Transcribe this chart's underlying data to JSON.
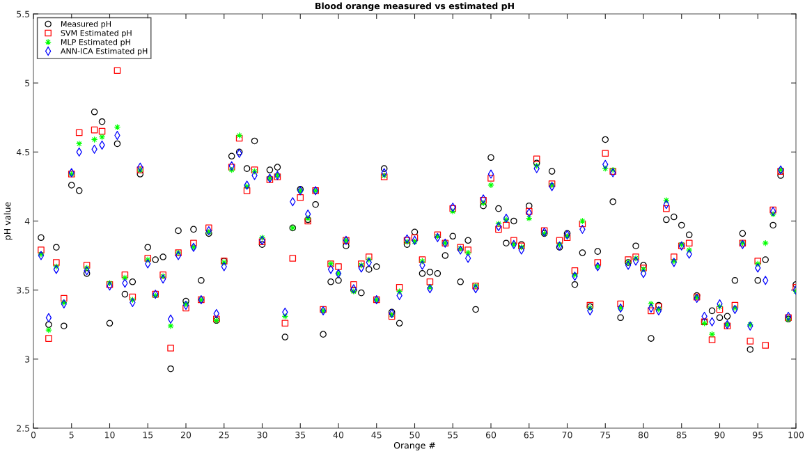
{
  "chart_data": {
    "type": "scatter",
    "title": "Blood orange measured vs estimated pH",
    "xlabel": "Orange #",
    "ylabel": "pH value",
    "x": [
      1,
      2,
      3,
      4,
      5,
      6,
      7,
      8,
      9,
      10,
      11,
      12,
      13,
      14,
      15,
      16,
      17,
      18,
      19,
      20,
      21,
      22,
      23,
      24,
      25,
      26,
      27,
      28,
      29,
      30,
      31,
      32,
      33,
      34,
      35,
      36,
      37,
      38,
      39,
      40,
      41,
      42,
      43,
      44,
      45,
      46,
      47,
      48,
      49,
      50,
      51,
      52,
      53,
      54,
      55,
      56,
      57,
      58,
      59,
      60,
      61,
      62,
      63,
      64,
      65,
      66,
      67,
      68,
      69,
      70,
      71,
      72,
      73,
      74,
      75,
      76,
      77,
      78,
      79,
      80,
      81,
      82,
      83,
      84,
      85,
      86,
      87,
      88,
      89,
      90,
      91,
      92,
      93,
      94,
      95,
      96,
      97,
      98,
      99,
      100
    ],
    "xlim": [
      0,
      100
    ],
    "xticks": [
      0,
      5,
      10,
      15,
      20,
      25,
      30,
      35,
      40,
      45,
      50,
      55,
      60,
      65,
      70,
      75,
      80,
      85,
      90,
      95,
      100
    ],
    "ylim": [
      2.5,
      5.5
    ],
    "yticks": [
      2.5,
      3,
      3.5,
      4,
      4.5,
      5,
      5.5
    ],
    "grid": false,
    "legend": "top left",
    "series": [
      {
        "name": "Measured pH",
        "color": "#000000",
        "marker": "circle",
        "values": [
          3.88,
          3.25,
          3.81,
          3.24,
          4.26,
          4.22,
          3.62,
          4.79,
          4.72,
          3.26,
          4.56,
          3.47,
          3.56,
          4.34,
          3.81,
          3.72,
          3.74,
          2.93,
          3.93,
          3.42,
          3.94,
          3.57,
          3.91,
          3.28,
          3.71,
          4.47,
          4.5,
          4.38,
          4.58,
          3.83,
          4.37,
          4.39,
          3.16,
          3.95,
          4.23,
          4.01,
          4.12,
          3.18,
          3.56,
          3.57,
          3.82,
          3.5,
          3.48,
          3.65,
          3.67,
          4.38,
          3.34,
          3.26,
          3.83,
          3.92,
          3.62,
          3.63,
          3.62,
          3.75,
          3.89,
          3.56,
          3.86,
          3.36,
          4.11,
          4.46,
          4.09,
          3.84,
          4.0,
          3.83,
          4.11,
          4.42,
          3.91,
          4.36,
          3.81,
          3.91,
          3.54,
          3.77,
          3.38,
          3.78,
          4.59,
          4.14,
          3.3,
          3.7,
          3.82,
          3.68,
          3.15,
          3.39,
          4.01,
          4.03,
          3.97,
          3.9,
          3.46,
          3.27,
          3.35,
          3.3,
          3.31,
          3.57,
          3.91,
          3.07,
          3.57,
          3.72,
          3.97,
          4.33,
          3.29,
          3.54
        ]
      },
      {
        "name": "SVM Estimated pH",
        "color": "#ff0000",
        "marker": "square",
        "values": [
          3.79,
          3.15,
          3.7,
          3.44,
          4.34,
          4.64,
          3.68,
          4.66,
          4.65,
          3.54,
          5.09,
          3.61,
          3.45,
          4.37,
          3.73,
          3.47,
          3.61,
          3.08,
          3.77,
          3.37,
          3.84,
          3.43,
          3.95,
          3.29,
          3.71,
          4.39,
          4.6,
          4.22,
          4.37,
          3.85,
          4.3,
          4.32,
          3.26,
          3.73,
          4.17,
          4.0,
          4.22,
          3.36,
          3.69,
          3.67,
          3.86,
          3.54,
          3.69,
          3.74,
          3.43,
          4.32,
          3.31,
          3.52,
          3.86,
          3.88,
          3.72,
          3.56,
          3.9,
          3.84,
          4.09,
          3.81,
          3.79,
          3.53,
          4.15,
          4.31,
          3.94,
          3.97,
          3.86,
          3.82,
          4.07,
          4.45,
          3.93,
          4.27,
          3.86,
          3.88,
          3.64,
          3.98,
          3.39,
          3.7,
          4.49,
          4.36,
          3.4,
          3.72,
          3.74,
          3.66,
          3.35,
          3.38,
          4.09,
          3.74,
          3.82,
          3.84,
          3.45,
          3.27,
          3.14,
          3.36,
          3.24,
          3.39,
          3.84,
          3.13,
          3.71,
          3.1,
          4.08,
          4.36,
          3.3,
          3.52
        ]
      },
      {
        "name": "MLP Estimated pH",
        "color": "#00ff00",
        "marker": "cross",
        "values": [
          3.76,
          3.21,
          3.67,
          3.41,
          4.34,
          4.56,
          3.66,
          4.59,
          4.61,
          3.55,
          4.68,
          3.59,
          3.43,
          4.37,
          3.72,
          3.46,
          3.6,
          3.24,
          3.77,
          3.4,
          3.81,
          3.43,
          3.92,
          3.28,
          3.7,
          4.37,
          4.62,
          4.25,
          4.36,
          3.88,
          4.31,
          4.33,
          3.31,
          3.95,
          4.22,
          4.02,
          4.22,
          3.35,
          3.69,
          3.62,
          3.86,
          3.49,
          3.68,
          3.72,
          3.43,
          4.33,
          3.32,
          3.49,
          3.85,
          3.85,
          3.71,
          3.52,
          3.89,
          3.84,
          4.07,
          3.8,
          3.77,
          3.53,
          4.13,
          4.26,
          3.98,
          4.01,
          3.83,
          3.81,
          4.02,
          4.4,
          3.91,
          4.26,
          3.83,
          3.89,
          3.61,
          4.0,
          3.37,
          3.67,
          4.38,
          4.37,
          3.37,
          3.7,
          3.73,
          3.65,
          3.4,
          3.36,
          4.15,
          3.71,
          3.83,
          3.79,
          3.45,
          3.26,
          3.18,
          3.38,
          3.25,
          3.37,
          3.84,
          3.25,
          3.69,
          3.84,
          4.05,
          4.37,
          3.29,
          3.49
        ]
      },
      {
        "name": "ANN-ICA Estimated pH",
        "color": "#0000ff",
        "marker": "diamond",
        "values": [
          3.75,
          3.3,
          3.65,
          3.4,
          4.35,
          4.5,
          3.64,
          4.52,
          4.55,
          3.53,
          4.62,
          3.55,
          3.41,
          4.39,
          3.69,
          3.47,
          3.58,
          3.29,
          3.75,
          3.39,
          3.81,
          3.43,
          3.93,
          3.33,
          3.67,
          4.4,
          4.49,
          4.26,
          4.33,
          3.86,
          4.31,
          4.33,
          3.34,
          4.14,
          4.22,
          4.05,
          4.22,
          3.35,
          3.65,
          3.62,
          3.86,
          3.51,
          3.66,
          3.7,
          3.43,
          4.35,
          3.33,
          3.46,
          3.87,
          3.86,
          3.68,
          3.51,
          3.88,
          3.84,
          4.1,
          3.79,
          3.73,
          3.51,
          4.16,
          4.34,
          3.96,
          4.02,
          3.83,
          3.79,
          4.06,
          4.38,
          3.92,
          4.25,
          3.82,
          3.9,
          3.6,
          3.94,
          3.35,
          3.67,
          4.41,
          4.35,
          3.37,
          3.68,
          3.71,
          3.62,
          3.37,
          3.35,
          4.12,
          3.7,
          3.82,
          3.76,
          3.44,
          3.31,
          3.27,
          3.4,
          3.25,
          3.36,
          3.83,
          3.24,
          3.66,
          3.57,
          4.07,
          4.37,
          3.31,
          3.5
        ]
      }
    ]
  }
}
